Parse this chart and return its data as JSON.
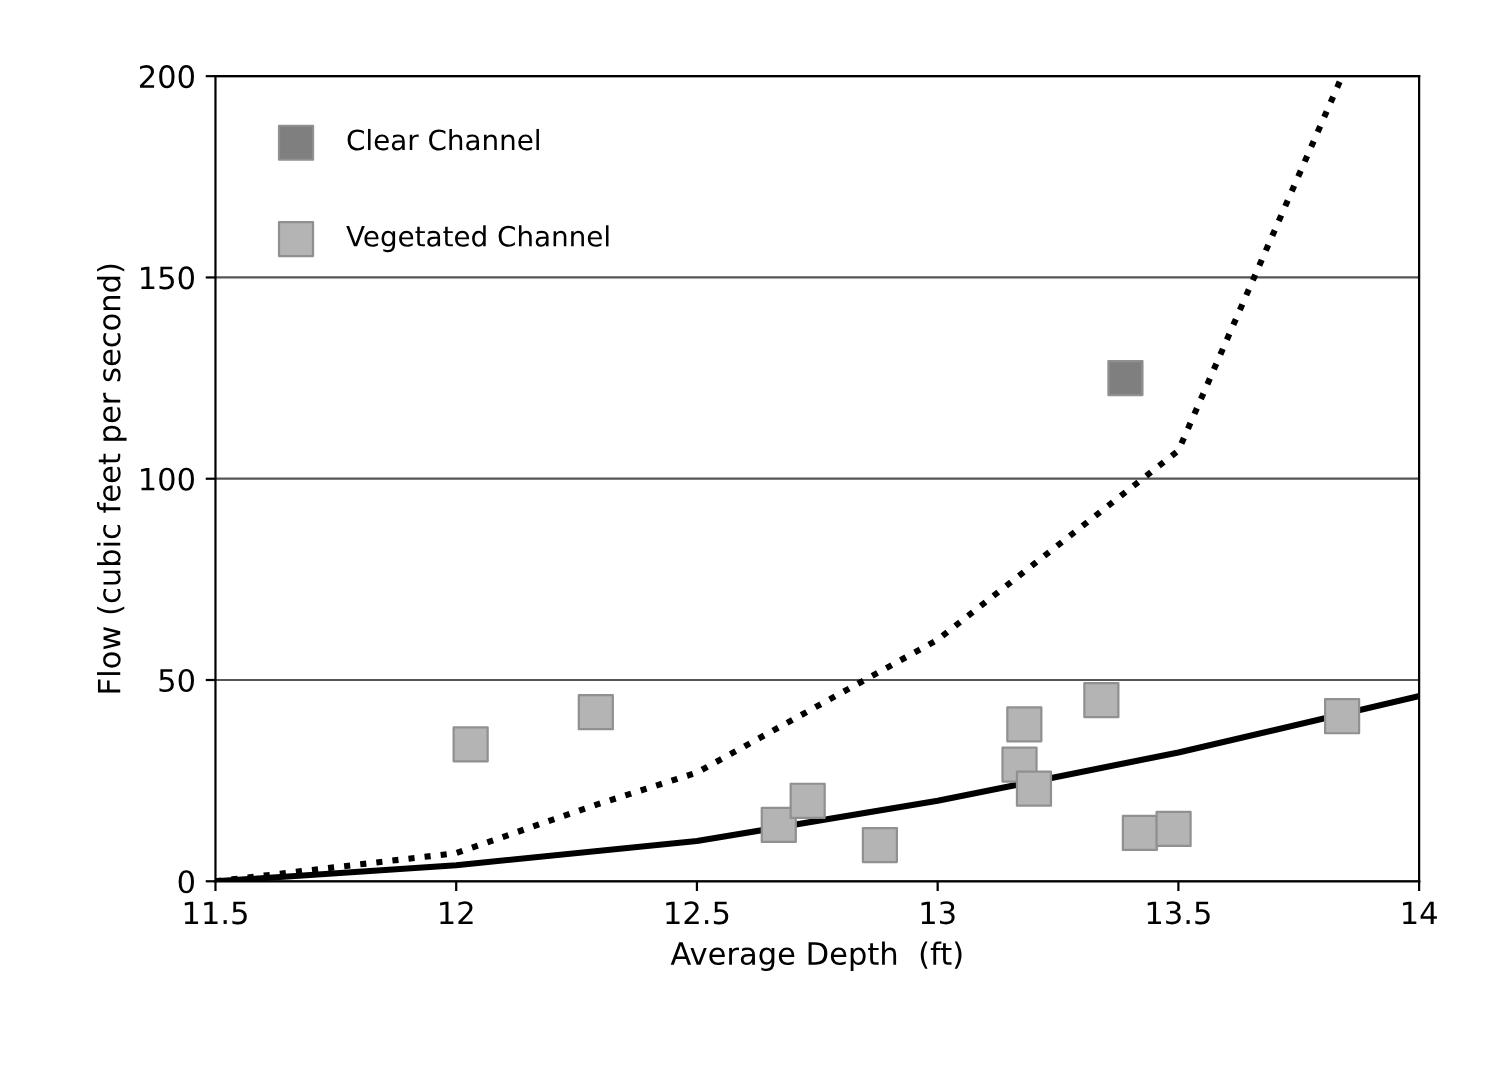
{
  "chart_data": {
    "type": "scatter",
    "xlabel": "Average Depth  (ft)",
    "ylabel": "Flow (cubic feet per second)",
    "xlim": [
      11.5,
      14
    ],
    "xticks": [
      11.5,
      12,
      12.5,
      13,
      13.5,
      14
    ],
    "ylim": [
      0,
      200
    ],
    "yticks": [
      0,
      50,
      100,
      150,
      200
    ],
    "grid": "y",
    "legend": "top left",
    "marker": "square",
    "series": [
      {
        "name": "Clear Channel",
        "color": "#7f7f7f",
        "x": [
          13.39
        ],
        "values": [
          125
        ]
      },
      {
        "name": "Vegetated Channel",
        "color": "#b4b4b4",
        "x": [
          12.03,
          12.29,
          12.67,
          12.73,
          12.88,
          13.17,
          13.18,
          13.2,
          13.34,
          13.42,
          13.49,
          13.84
        ],
        "values": [
          34,
          42,
          14,
          20,
          9,
          29,
          39,
          23,
          45,
          12,
          13,
          41
        ]
      },
      {
        "type": "line",
        "marker": "none",
        "line_style": "dotted",
        "color": "#000000",
        "x": [
          11.5,
          12,
          12.29,
          12.5,
          13,
          13.5,
          13.84
        ],
        "values": [
          0,
          7,
          19,
          27,
          60,
          107,
          200
        ]
      },
      {
        "type": "line",
        "marker": "none",
        "line_style": "solid",
        "color": "#000000",
        "x": [
          11.5,
          12,
          12.5,
          13,
          13.5,
          14
        ],
        "values": [
          0,
          4,
          10,
          20,
          32,
          46
        ]
      }
    ]
  }
}
